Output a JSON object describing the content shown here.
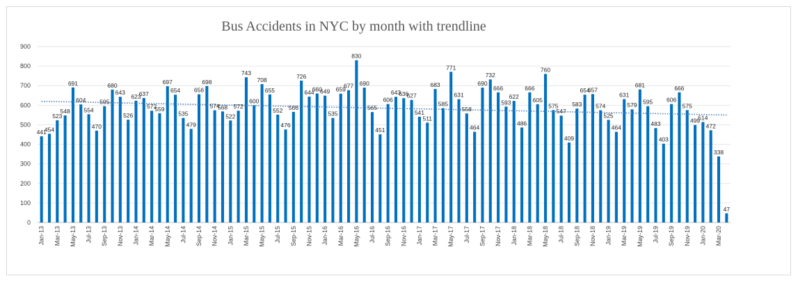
{
  "chart_data": {
    "type": "bar",
    "title": "Bus Accidents in NYC by month with trendline",
    "xlabel": "",
    "ylabel": "",
    "ylim": [
      0,
      900
    ],
    "yticks": [
      0,
      100,
      200,
      300,
      400,
      500,
      600,
      700,
      800,
      900
    ],
    "grid": true,
    "legend": "none",
    "bar_color": "#0070c0",
    "trendline": {
      "type": "linear",
      "color": "#4a7fb5",
      "style": "dotted",
      "start": 620,
      "end": 550
    },
    "categories": [
      "Jan-13",
      "Feb-13",
      "Mar-13",
      "Apr-13",
      "May-13",
      "Jun-13",
      "Jul-13",
      "Aug-13",
      "Sep-13",
      "Oct-13",
      "Nov-13",
      "Dec-13",
      "Jan-14",
      "Feb-14",
      "Mar-14",
      "Apr-14",
      "May-14",
      "Jun-14",
      "Jul-14",
      "Aug-14",
      "Sep-14",
      "Oct-14",
      "Nov-14",
      "Dec-14",
      "Jan-15",
      "Feb-15",
      "Mar-15",
      "Apr-15",
      "May-15",
      "Jun-15",
      "Jul-15",
      "Aug-15",
      "Sep-15",
      "Oct-15",
      "Nov-15",
      "Dec-15",
      "Jan-16",
      "Feb-16",
      "Mar-16",
      "Apr-16",
      "May-16",
      "Jun-16",
      "Jul-16",
      "Aug-16",
      "Sep-16",
      "Oct-16",
      "Nov-16",
      "Dec-16",
      "Jan-17",
      "Feb-17",
      "Mar-17",
      "Apr-17",
      "May-17",
      "Jun-17",
      "Jul-17",
      "Aug-17",
      "Sep-17",
      "Oct-17",
      "Nov-17",
      "Dec-17",
      "Jan-18",
      "Feb-18",
      "Mar-18",
      "Apr-18",
      "May-18",
      "Jun-18",
      "Jul-18",
      "Aug-18",
      "Sep-18",
      "Oct-18",
      "Nov-18",
      "Dec-18",
      "Jan-19",
      "Feb-19",
      "Mar-19",
      "Apr-19",
      "May-19",
      "Jun-19",
      "Jul-19",
      "Aug-19",
      "Sep-19",
      "Oct-19",
      "Nov-19",
      "Dec-19",
      "Jan-20",
      "Feb-20",
      "Mar-20",
      "Apr-20"
    ],
    "tick_labels": [
      "Jan-13",
      "Mar-13",
      "May-13",
      "Jul-13",
      "Sep-13",
      "Nov-13",
      "Jan-14",
      "Mar-14",
      "May-14",
      "Jul-14",
      "Sep-14",
      "Nov-14",
      "Jan-15",
      "Mar-15",
      "May-15",
      "Jul-15",
      "Sep-15",
      "Nov-15",
      "Jan-16",
      "Mar-16",
      "May-16",
      "Jul-16",
      "Sep-16",
      "Nov-16",
      "Jan-17",
      "Mar-17",
      "May-17",
      "Jul-17",
      "Sep-17",
      "Nov-17",
      "Jan-18",
      "Mar-18",
      "May-18",
      "Jul-18",
      "Sep-18",
      "Nov-18",
      "Jan-19",
      "Mar-19",
      "May-19",
      "Jul-19",
      "Sep-19",
      "Nov-19",
      "Jan-20",
      "Mar-20"
    ],
    "values": [
      441,
      454,
      523,
      548,
      691,
      604,
      554,
      470,
      595,
      680,
      643,
      526,
      623,
      637,
      572,
      559,
      697,
      654,
      535,
      479,
      656,
      698,
      574,
      568,
      522,
      572,
      743,
      600,
      708,
      655,
      552,
      476,
      566,
      726,
      644,
      660,
      649,
      535,
      659,
      677,
      830,
      690,
      565,
      451,
      606,
      643,
      636,
      627,
      541,
      511,
      683,
      585,
      771,
      631,
      558,
      464,
      690,
      732,
      666,
      593,
      622,
      486,
      666,
      605,
      760,
      575,
      547,
      409,
      583,
      654,
      657,
      574,
      525,
      464,
      631,
      579,
      681,
      595,
      483,
      403,
      606,
      666,
      575,
      499,
      514,
      472,
      338,
      47
    ]
  }
}
